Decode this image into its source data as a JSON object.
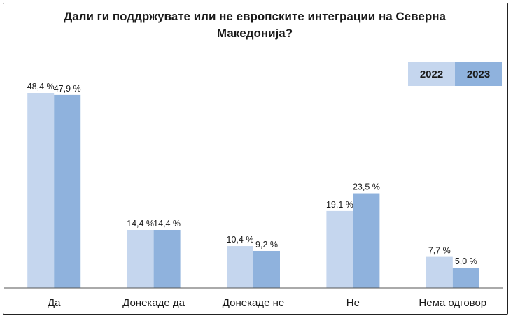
{
  "chart_data": {
    "type": "bar",
    "title_lines": [
      "Дали ги поддржувате или не европските интеграции на Северна",
      "Македонија?"
    ],
    "categories": [
      "Да",
      "Донекаде да",
      "Донекаде не",
      "Не",
      "Нема одговор"
    ],
    "series": [
      {
        "name": "2022",
        "color": "#c5d6ee",
        "values": [
          48.4,
          14.4,
          10.4,
          19.1,
          7.7
        ],
        "labels": [
          "48,4 %",
          "14,4 %",
          "10,4 %",
          "19,1 %",
          "7,7 %"
        ]
      },
      {
        "name": "2023",
        "color": "#8fb2dd",
        "values": [
          47.9,
          14.4,
          9.2,
          23.5,
          5.0
        ],
        "labels": [
          "47,9 %",
          "14,4 %",
          "9,2 %",
          "23,5 %",
          "5,0 %"
        ]
      }
    ],
    "ylim": [
      0,
      50
    ],
    "grid": false,
    "legend_position": "top-right"
  }
}
